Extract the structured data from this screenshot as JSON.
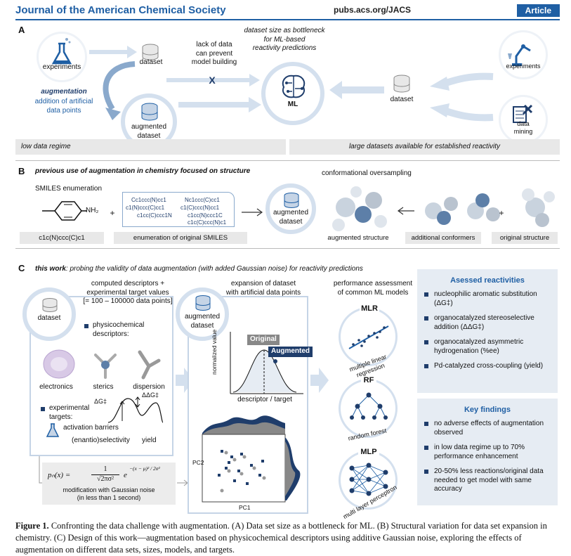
{
  "header": {
    "journal": "Journal of the American Chemical Society",
    "url": "pubs.acs.org/JACS",
    "badge": "Article"
  },
  "panelA": {
    "label": "A",
    "experiments_left": "experiments",
    "dataset_top": "dataset",
    "lack_of_data": "lack of data\ncan prevent\nmodel building",
    "x_mark": "X",
    "bottleneck": "dataset size as bottleneck\nfor ML-based\nreactivity predictions",
    "ml": "ML",
    "augmentation": "augmentation",
    "addition": "addition of artificial\ndata points",
    "augmented_dataset": "augmented\ndataset",
    "dataset_right": "dataset",
    "experiments_right": "experiments",
    "data_mining": "data\nmining",
    "low_regime": "low data regime",
    "large_datasets": "large datasets available for established reactivity"
  },
  "panelB": {
    "label": "B",
    "title": "previous use of augmentation in chemistry focused on structure",
    "smiles_enum": "SMILES enumeration",
    "nh2": "NH₂",
    "plus1": "+",
    "smiles_list": [
      "Cc1ccc(N)cc1",
      "Nc1ccc(C)cc1",
      "c1(N)ccc(C)cc1",
      "c1(C)ccc(N)cc1",
      "c1cc(C)ccc1N",
      "c1cc(N)ccc1C",
      "c1c(C)ccc(N)c1"
    ],
    "smiles_original": "c1c(N)ccc(C)c1",
    "enum_original": "enumeration of original SMILES",
    "aug_dataset": "augmented\ndataset",
    "conf_title": "conformational oversampling",
    "aug_structure": "augmented structure",
    "add_conformers": "additional conformers",
    "orig_structure": "original structure",
    "plus2": "+"
  },
  "panelC": {
    "label": "C",
    "title_bold": "this work",
    "title_rest": ": probing the validity of data augmentation (with added Gaussian noise) for reactivity predictions",
    "computed": "computed descriptors +\nexperimental target values\n[= 100 – 100000 data points]",
    "dataset": "dataset",
    "physchem": "physicochemical\ndescriptors:",
    "electronics": "electronics",
    "sterics": "sterics",
    "dispersion": "dispersion",
    "exp_targets": "experimental\ntargets:",
    "dg": "ΔG‡",
    "ddg": "ΔΔG‡",
    "activation": "activation barriers",
    "selectivity": "(enantio)selectivity",
    "yield": "yield",
    "formula_lhs": "pₙ(x) =",
    "formula_num": "1",
    "formula_den": "√2πσ²",
    "formula_e": "e",
    "formula_exp": "−(x − μ)² / 2σ²",
    "modification": "modification with Gaussian noise\n(in less than 1 second)",
    "expansion": "expansion of dataset\nwith artificial data points",
    "aug_dataset": "augmented\ndataset",
    "norm_value": "normalized value",
    "original": "Original",
    "augmented": "Augmented",
    "desc_target": "descriptor / target",
    "pc1": "PC1",
    "pc2": "PC2",
    "perf": "performance assessment\nof common ML models",
    "mlr": "MLR",
    "mlr_sub": "multiple linear regression",
    "rf": "RF",
    "rf_sub": "random forest",
    "mlp": "MLP",
    "mlp_sub": "multi layer perceptron"
  },
  "sidebar": {
    "reactivities_title": "Asessed reactivities",
    "reactivities": [
      "nucleophilic aromatic substitution (ΔG‡)",
      "organocatalyzed stereoselective addition (ΔΔG‡)",
      "organocatalyzed asymmetric hydrogenation (%ee)",
      "Pd-catalyzed cross-coupling (yield)"
    ],
    "findings_title": "Key findings",
    "findings": [
      "no adverse effects of augmentation observed",
      "in low data regime up to 70% performance enhancement",
      "20-50% less reactions/original data needed to get model with same accuracy"
    ]
  },
  "caption": {
    "label": "Figure 1.",
    "text": " Confronting the data challenge with augmentation. (A) Data set size as a bottleneck for ML. (B) Structural variation for data set expansion in chemistry. (C) Design of this work—augmentation based on physicochemical descriptors using additive Gaussian noise, exploring the effects of augmentation on different data sets, sizes, models, and targets."
  },
  "colors": {
    "accent": "#1f5fa4",
    "pale_blue": "#d4e0ee",
    "navy": "#1f3d6b",
    "grey": "#e8e8e8"
  }
}
